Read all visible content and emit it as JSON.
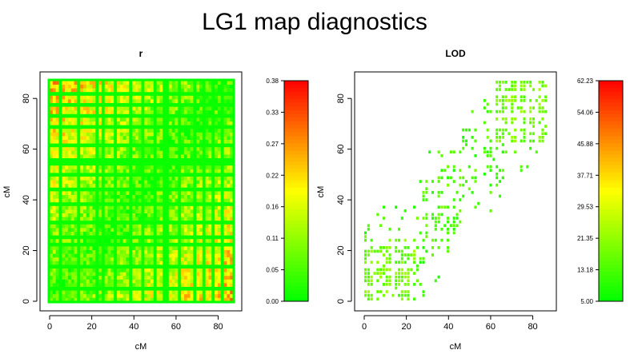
{
  "title": "LG1 map diagnostics",
  "chart_data": [
    {
      "type": "heatmap",
      "title": "r",
      "xlabel": "cM",
      "ylabel": "cM",
      "x_ticks": [
        "0",
        "20",
        "40",
        "60",
        "80"
      ],
      "y_ticks": [
        "0",
        "20",
        "40",
        "60",
        "80"
      ],
      "xlim": [
        0,
        87
      ],
      "ylim": [
        0,
        87
      ],
      "colorscale": {
        "low": "#00ff00",
        "mid": "#ffff00",
        "high": "#ff0000"
      },
      "legend_ticks": [
        "0.00",
        "0.05",
        "0.11",
        "0.16",
        "0.22",
        "0.27",
        "0.33",
        "0.38"
      ],
      "value_range": [
        0,
        0.38
      ]
    },
    {
      "type": "heatmap",
      "title": "LOD",
      "xlabel": "cM",
      "ylabel": "cM",
      "x_ticks": [
        "0",
        "20",
        "40",
        "60",
        "80"
      ],
      "y_ticks": [
        "0",
        "20",
        "40",
        "60",
        "80"
      ],
      "xlim": [
        0,
        87
      ],
      "ylim": [
        0,
        87
      ],
      "colorscale": {
        "low": "#00ff00",
        "mid": "#ffff00",
        "high": "#ff0000"
      },
      "legend_ticks": [
        "5.00",
        "13.18",
        "21.35",
        "29.53",
        "37.71",
        "45.88",
        "54.06",
        "62.23"
      ],
      "value_range": [
        5,
        62.23
      ]
    }
  ]
}
